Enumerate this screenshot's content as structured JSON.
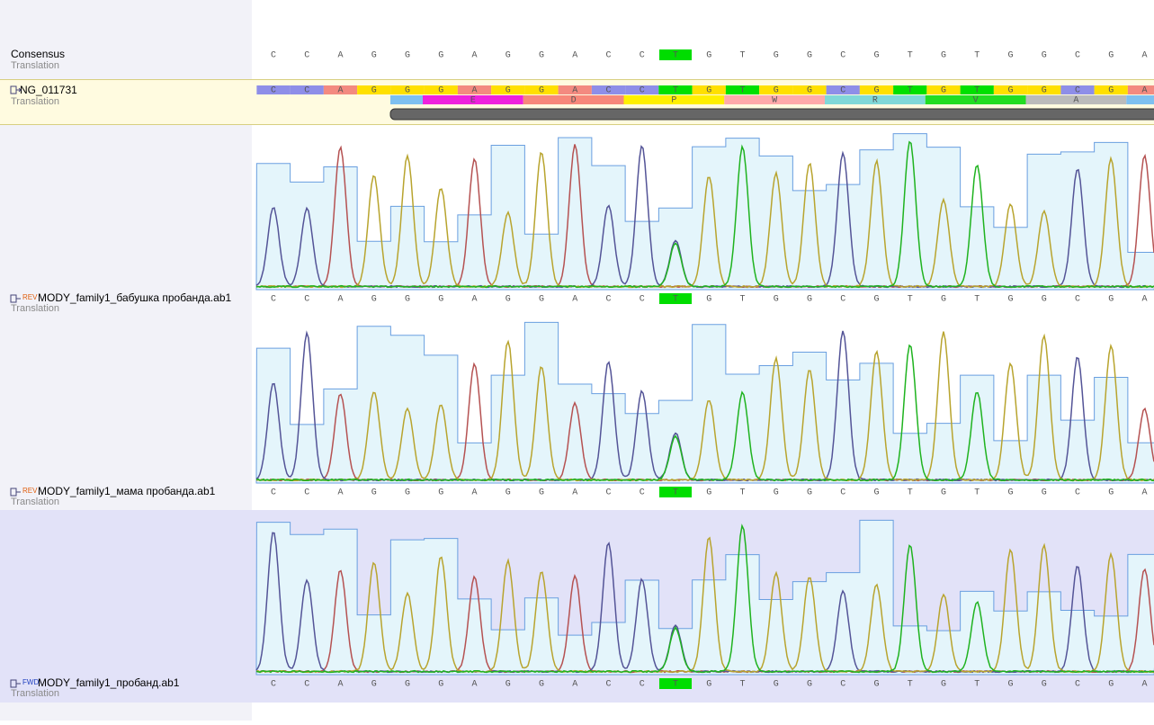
{
  "consensus": {
    "label": "Consensus",
    "sublabel": "Translation"
  },
  "sequence": [
    "C",
    "C",
    "A",
    "G",
    "G",
    "G",
    "A",
    "G",
    "G",
    "A",
    "C",
    "C",
    "T",
    "G",
    "T",
    "G",
    "G",
    "C",
    "G",
    "T",
    "G",
    "T",
    "G",
    "G",
    "C",
    "G",
    "A"
  ],
  "highlight_index": 12,
  "reference": {
    "name": "NG_011731",
    "sublabel": "Translation",
    "amino_acids": [
      "E",
      "D",
      "P",
      "W",
      "R",
      "V",
      "A"
    ]
  },
  "tracks": [
    {
      "direction": "REV",
      "name": "MODY_family1_бабушка пробанда.ab1",
      "sublabel": "Translation"
    },
    {
      "direction": "REV",
      "name": "MODY_family1_мама пробанда.ab1",
      "sublabel": "Translation"
    },
    {
      "direction": "FWD",
      "name": "MODY_family1_пробанд.ab1",
      "sublabel": "Translation"
    }
  ]
}
